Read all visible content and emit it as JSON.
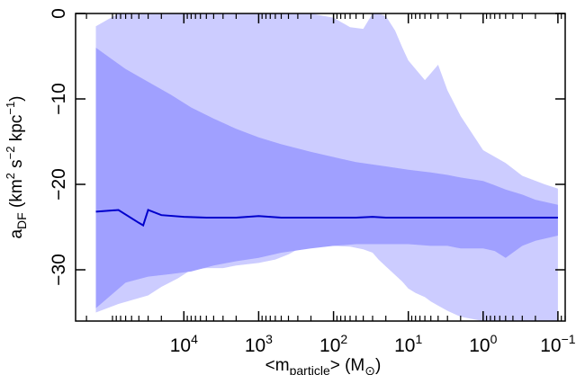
{
  "chart_data": {
    "type": "area",
    "title": "",
    "xscale": "log",
    "x_reversed": true,
    "xlim": [
      280000,
      0.08
    ],
    "ylim": [
      -36,
      0
    ],
    "grid": false,
    "legend": "none",
    "xlabel": {
      "prefix": "<m",
      "sub": "particle",
      "middle": "> (M",
      "sub2": "⊙",
      "suffix": ")"
    },
    "ylabel": {
      "prefix": "a",
      "sub": "DF",
      "part1": " (km",
      "sup1": "2",
      "part2": " s",
      "sup2": "−2",
      "part3": " kpc",
      "sup3": "−1",
      "part4": ")"
    },
    "xticks": [
      {
        "value": 10000,
        "base": "10",
        "exp": "4"
      },
      {
        "value": 1000,
        "base": "10",
        "exp": "3"
      },
      {
        "value": 100,
        "base": "10",
        "exp": "2"
      },
      {
        "value": 10,
        "base": "10",
        "exp": "1"
      },
      {
        "value": 1,
        "base": "10",
        "exp": "0"
      },
      {
        "value": 0.1,
        "base": "10",
        "exp": "−1"
      }
    ],
    "yticks": [
      {
        "value": 0,
        "label": "0"
      },
      {
        "value": -10,
        "label": "−10"
      },
      {
        "value": -20,
        "label": "−20"
      },
      {
        "value": -30,
        "label": "−30"
      }
    ],
    "colors": {
      "outer_band": "#ccccff",
      "inner_band": "#a0a0ff",
      "median_line": "#0000cc"
    },
    "series": [
      {
        "role": "outer_band",
        "x": [
          150000,
          75000,
          30000,
          20000,
          12000,
          8000,
          5000,
          3000,
          2000,
          1000,
          600,
          400,
          300,
          200,
          100,
          60,
          40,
          30,
          25,
          20,
          15,
          12,
          10,
          8,
          6,
          5,
          4,
          3,
          2,
          1,
          0.5,
          0.3,
          0.15,
          0.1
        ],
        "upper": [
          -1.5,
          0.0,
          0.0,
          0.0,
          0.0,
          0.0,
          0.0,
          0.0,
          0.0,
          0.0,
          0.0,
          0.0,
          0.0,
          0.0,
          -0.5,
          -1.6,
          -1.8,
          0.0,
          0.0,
          -0.3,
          -2.0,
          -4.0,
          -5.5,
          -6.5,
          -7.8,
          -7.0,
          -6.0,
          -9.0,
          -12.0,
          -16.0,
          -17.5,
          -19.0,
          -20.0,
          -20.5
        ],
        "lower": [
          -35,
          -34,
          -33,
          -32,
          -31,
          -30,
          -29.8,
          -29.8,
          -29.5,
          -29.2,
          -28.8,
          -28.2,
          -27.6,
          -27.4,
          -27.2,
          -27.3,
          -27.6,
          -28.0,
          -28.8,
          -29.6,
          -30.6,
          -31.4,
          -32.2,
          -32.7,
          -33.2,
          -33.7,
          -34.2,
          -34.8,
          -35.5,
          -36.0,
          -36.0,
          -36.0,
          -36.0,
          -36.0
        ]
      },
      {
        "role": "inner_band",
        "x": [
          150000,
          60000,
          30000,
          15000,
          8000,
          4000,
          2000,
          1000,
          500,
          200,
          100,
          50,
          20,
          10,
          5,
          3,
          2,
          1,
          0.7,
          0.5,
          0.3,
          0.2,
          0.1
        ],
        "upper": [
          -4.0,
          -6.5,
          -8.0,
          -9.5,
          -11.0,
          -12.3,
          -13.5,
          -14.5,
          -15.3,
          -16.2,
          -16.8,
          -17.4,
          -17.9,
          -18.3,
          -18.6,
          -18.9,
          -19.2,
          -19.6,
          -20.1,
          -20.6,
          -21.2,
          -21.8,
          -22.4
        ],
        "lower": [
          -34.5,
          -31.5,
          -30.8,
          -30.5,
          -30.2,
          -29.5,
          -29.0,
          -28.6,
          -28.0,
          -27.5,
          -27.2,
          -27.0,
          -27.0,
          -27.0,
          -27.2,
          -27.2,
          -27.5,
          -27.5,
          -27.8,
          -28.6,
          -27.2,
          -26.6,
          -26.0
        ]
      },
      {
        "role": "median_line",
        "x": [
          150000,
          75000,
          40000,
          35000,
          30000,
          20000,
          10000,
          5000,
          2000,
          1000,
          500,
          300,
          200,
          100,
          50,
          30,
          20,
          10,
          5,
          2,
          1,
          0.5,
          0.1
        ],
        "y": [
          -23.2,
          -23.0,
          -24.5,
          -24.8,
          -23.0,
          -23.6,
          -23.8,
          -23.9,
          -23.9,
          -23.7,
          -23.9,
          -23.9,
          -23.9,
          -23.9,
          -23.9,
          -23.8,
          -23.9,
          -23.9,
          -23.9,
          -23.9,
          -23.9,
          -23.9,
          -23.9
        ]
      }
    ]
  }
}
